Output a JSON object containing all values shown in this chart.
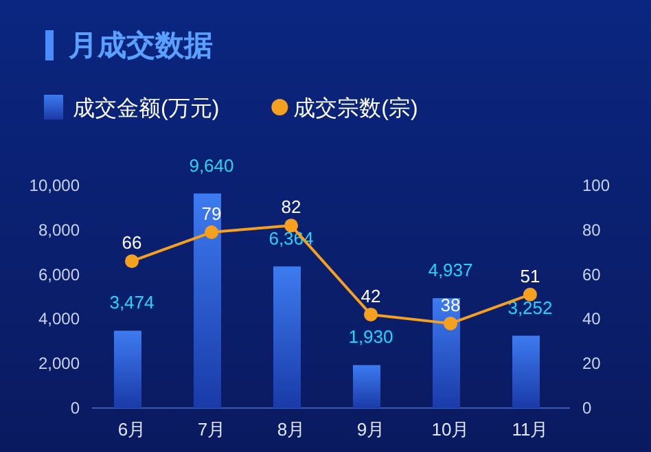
{
  "chart_data": {
    "type": "bar",
    "title": "月成交数据",
    "categories": [
      "6月",
      "7月",
      "8月",
      "9月",
      "10月",
      "11月"
    ],
    "series": [
      {
        "name": "成交金额(万元)",
        "color": "#3d7bf0",
        "values": [
          3474,
          9640,
          6364,
          1930,
          4937,
          3252
        ],
        "value_labels": [
          "3,474",
          "9,640",
          "6,364",
          "1,930",
          "4,937",
          "3,252"
        ]
      },
      {
        "name": "成交宗数(宗)",
        "type": "line",
        "axis": "y2",
        "color": "#f5a01e",
        "values": [
          66,
          79,
          82,
          42,
          38,
          51
        ],
        "value_labels": [
          "66",
          "79",
          "82",
          "42",
          "38",
          "51"
        ]
      }
    ],
    "ylim": [
      0,
      10000
    ],
    "yticks": [
      {
        "value": 0,
        "label": "0"
      },
      {
        "value": 2000,
        "label": "2,000"
      },
      {
        "value": 4000,
        "label": "4,000"
      },
      {
        "value": 6000,
        "label": "6,000"
      },
      {
        "value": 8000,
        "label": "8,000"
      },
      {
        "value": 10000,
        "label": "10,000"
      }
    ],
    "y2lim": [
      0,
      100
    ],
    "y2ticks": [
      0,
      20,
      40,
      60,
      80,
      100
    ],
    "legend": "top left",
    "marker": "circle",
    "line_style": "solid"
  }
}
